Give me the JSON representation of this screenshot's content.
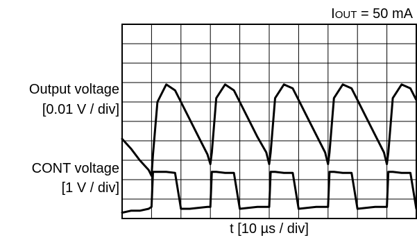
{
  "chart_data": {
    "type": "line",
    "title": "I_OUT = 50 mA",
    "title_parts": {
      "base": "I",
      "sub": "OUT",
      "rest": " = 50 mA"
    },
    "xlabel": "t [10 µs / div]",
    "grid": true,
    "x_divisions": 10,
    "y_divisions": 10,
    "channels": [
      {
        "label_line1": "Output voltage",
        "label_line2": "[0.01 V / div]"
      },
      {
        "label_line1": "CONT voltage",
        "label_line2": "[1 V / div]"
      }
    ],
    "x": [
      0,
      0.3,
      0.6,
      0.9,
      1.0,
      1.05,
      1.2,
      1.5,
      1.8,
      2.0,
      2.3,
      2.6,
      2.9,
      3.0,
      3.05,
      3.2,
      3.5,
      3.8,
      4.0,
      4.3,
      4.6,
      4.9,
      5.0,
      5.05,
      5.2,
      5.5,
      5.8,
      6.0,
      6.3,
      6.6,
      6.9,
      7.0,
      7.05,
      7.2,
      7.5,
      7.8,
      8.0,
      8.3,
      8.6,
      8.9,
      9.0,
      9.05,
      9.2,
      9.5,
      9.8,
      10.0
    ],
    "series": [
      {
        "values": [
          4.1,
          3.6,
          3.0,
          2.5,
          2.2,
          3.3,
          6.0,
          6.9,
          6.6,
          6.0,
          5.1,
          4.2,
          3.3,
          2.8,
          3.4,
          6.2,
          6.9,
          6.6,
          6.0,
          5.1,
          4.2,
          3.4,
          2.8,
          3.4,
          6.2,
          6.9,
          6.7,
          6.1,
          5.2,
          4.3,
          3.4,
          2.8,
          3.4,
          6.2,
          6.9,
          6.7,
          6.1,
          5.2,
          4.3,
          3.4,
          2.8,
          3.4,
          6.2,
          6.9,
          6.7,
          6.1
        ]
      },
      {
        "values": [
          0.3,
          0.4,
          0.4,
          0.5,
          0.6,
          2.4,
          2.4,
          2.4,
          2.35,
          0.5,
          0.5,
          0.55,
          0.6,
          0.6,
          2.4,
          2.4,
          2.35,
          2.35,
          0.5,
          0.55,
          0.6,
          0.6,
          0.6,
          2.4,
          2.4,
          2.35,
          2.35,
          0.5,
          0.55,
          0.6,
          0.6,
          0.6,
          2.4,
          2.4,
          2.35,
          2.35,
          0.5,
          0.55,
          0.6,
          0.6,
          0.6,
          2.4,
          2.4,
          2.35,
          2.35,
          0.5
        ]
      }
    ],
    "xlim": [
      0,
      10
    ],
    "ylim": [
      0,
      10
    ]
  }
}
